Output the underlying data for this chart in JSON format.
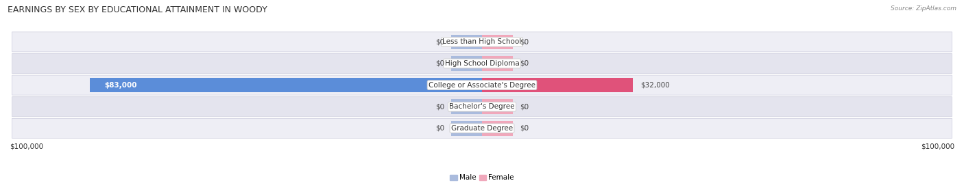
{
  "title": "EARNINGS BY SEX BY EDUCATIONAL ATTAINMENT IN WOODY",
  "source": "Source: ZipAtlas.com",
  "categories": [
    "Less than High School",
    "High School Diploma",
    "College or Associate's Degree",
    "Bachelor's Degree",
    "Graduate Degree"
  ],
  "male_values": [
    0,
    0,
    83000,
    0,
    0
  ],
  "female_values": [
    0,
    0,
    32000,
    0,
    0
  ],
  "x_max": 100000,
  "male_color_zero": "#aabbdd",
  "female_color_zero": "#f0a8bb",
  "male_color_active": "#5b8dd9",
  "female_color_active": "#e0527a",
  "row_bg_even": "#eeeef5",
  "row_bg_odd": "#e4e4ee",
  "title_fontsize": 9,
  "label_fontsize": 7.5,
  "value_fontsize": 7.5,
  "tick_fontsize": 7.5,
  "xlabel_left": "$100,000",
  "xlabel_right": "$100,000",
  "zero_bar_width": 6500,
  "legend_male_color": "#aabbdd",
  "legend_female_color": "#f0a8bb"
}
